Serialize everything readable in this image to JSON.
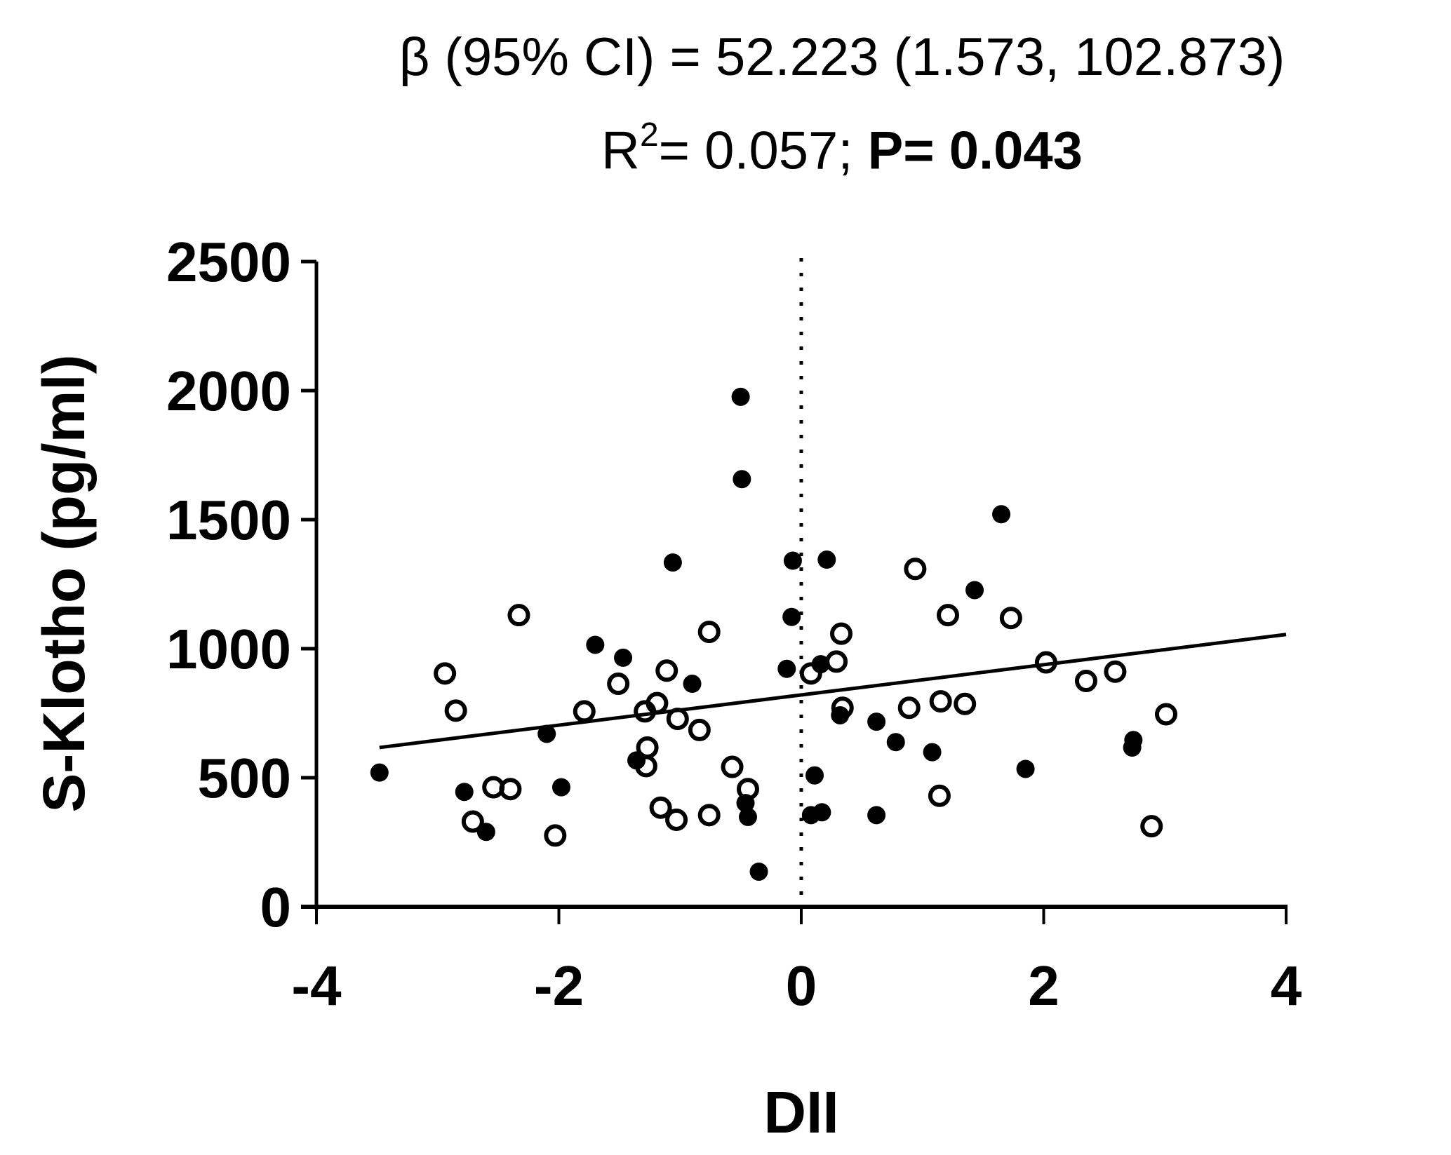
{
  "figure": {
    "title_line1": "β (95% CI) = 52.223 (1.573, 102.873)",
    "title_line2_prefix": "R",
    "title_line2_sup": "2",
    "title_line2_rest": "= 0.057; ",
    "title_line2_bold": "P= 0.043"
  },
  "chart_data": {
    "type": "scatter",
    "title": "β (95% CI) = 52.223 (1.573, 102.873); R²= 0.057; P= 0.043",
    "xlabel": "DII",
    "ylabel": "S-Klotho (pg/ml)",
    "xlim": [
      -4,
      4
    ],
    "ylim": [
      0,
      2500
    ],
    "xticks": [
      -4,
      -2,
      0,
      2,
      4
    ],
    "yticks": [
      0,
      500,
      1000,
      1500,
      2000,
      2500
    ],
    "grid": false,
    "reference_line": {
      "type": "vertical",
      "x": 0,
      "style": "dotted"
    },
    "regression_line": {
      "x": [
        -3.48,
        4.0
      ],
      "y": [
        617,
        1055
      ],
      "beta": 52.223,
      "ci": [
        1.573,
        102.873
      ],
      "r2": 0.057,
      "p": 0.043
    },
    "series": [
      {
        "name": "filled",
        "marker": "filled-circle",
        "points": [
          [
            -3.48,
            520
          ],
          [
            -2.78,
            445
          ],
          [
            -2.6,
            290
          ],
          [
            -2.1,
            670
          ],
          [
            -1.98,
            463
          ],
          [
            -1.7,
            1015
          ],
          [
            -1.47,
            965
          ],
          [
            -1.36,
            567
          ],
          [
            -1.06,
            1334
          ],
          [
            -0.9,
            864
          ],
          [
            -0.5,
            1976
          ],
          [
            -0.49,
            1657
          ],
          [
            -0.44,
            348
          ],
          [
            -0.46,
            402
          ],
          [
            -0.35,
            136
          ],
          [
            -0.07,
            1341
          ],
          [
            -0.08,
            1123
          ],
          [
            -0.12,
            922
          ],
          [
            0.21,
            1345
          ],
          [
            0.11,
            509
          ],
          [
            0.08,
            355
          ],
          [
            0.17,
            366
          ],
          [
            0.32,
            742
          ],
          [
            0.16,
            940
          ],
          [
            0.62,
            717
          ],
          [
            0.62,
            355
          ],
          [
            0.78,
            638
          ],
          [
            1.08,
            599
          ],
          [
            1.43,
            1227
          ],
          [
            1.65,
            1521
          ],
          [
            1.85,
            534
          ],
          [
            2.74,
            646
          ],
          [
            2.73,
            617
          ]
        ]
      },
      {
        "name": "open",
        "marker": "open-circle",
        "points": [
          [
            -2.94,
            904
          ],
          [
            -2.85,
            760
          ],
          [
            -2.71,
            330
          ],
          [
            -2.54,
            463
          ],
          [
            -2.4,
            456
          ],
          [
            -2.33,
            1130
          ],
          [
            -2.03,
            276
          ],
          [
            -1.79,
            757
          ],
          [
            -1.51,
            864
          ],
          [
            -1.29,
            757
          ],
          [
            -1.27,
            617
          ],
          [
            -1.28,
            545
          ],
          [
            -1.19,
            789
          ],
          [
            -1.11,
            915
          ],
          [
            -1.16,
            384
          ],
          [
            -1.02,
            728
          ],
          [
            -1.03,
            337
          ],
          [
            -0.84,
            685
          ],
          [
            -0.76,
            1065
          ],
          [
            -0.76,
            355
          ],
          [
            -0.57,
            542
          ],
          [
            -0.44,
            456
          ],
          [
            0.08,
            904
          ],
          [
            0.33,
            1058
          ],
          [
            0.29,
            950
          ],
          [
            0.34,
            771
          ],
          [
            0.94,
            1309
          ],
          [
            0.89,
            771
          ],
          [
            1.15,
            796
          ],
          [
            1.14,
            430
          ],
          [
            1.21,
            1130
          ],
          [
            1.35,
            786
          ],
          [
            1.73,
            1119
          ],
          [
            2.02,
            947
          ],
          [
            2.35,
            875
          ],
          [
            2.59,
            911
          ],
          [
            2.89,
            312
          ],
          [
            3.01,
            746
          ]
        ]
      }
    ]
  },
  "colors": {
    "ink": "#000000",
    "background": "#ffffff"
  }
}
